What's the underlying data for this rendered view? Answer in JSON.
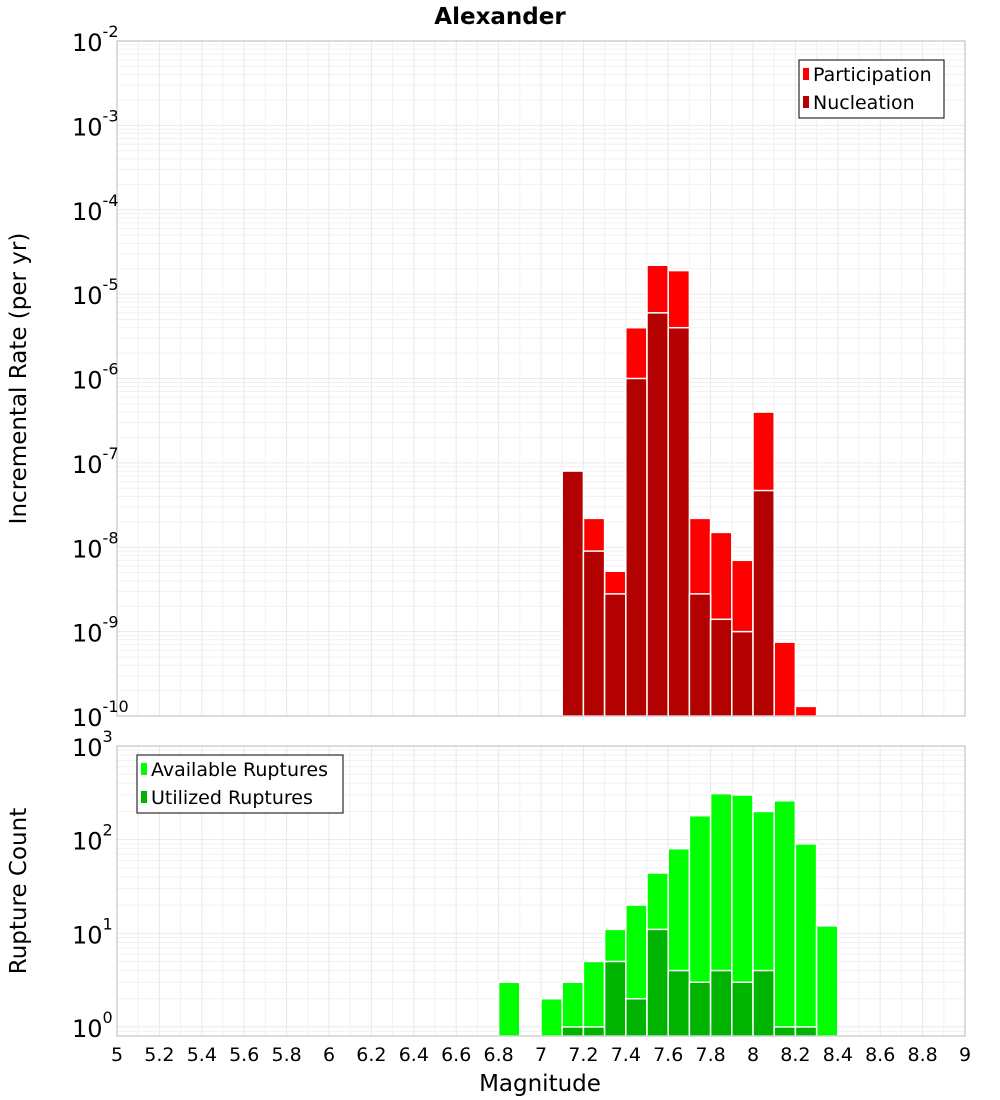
{
  "chart_data": [
    {
      "type": "bar",
      "title": "Alexander",
      "xlabel": "",
      "ylabel": "Incremental Rate (per yr)",
      "xlim": [
        5,
        9
      ],
      "ylim": [
        1e-10,
        0.01
      ],
      "yscale": "log",
      "grid": true,
      "legend_position": "top-right",
      "y_ticks": [
        "10",
        "10",
        "10",
        "10",
        "10",
        "10",
        "10",
        "10",
        "10"
      ],
      "y_tick_exponents": [
        "-10",
        "-9",
        "-8",
        "-7",
        "-6",
        "-5",
        "-4",
        "-3",
        "-2"
      ],
      "y_tick_values": [
        1e-10,
        1e-09,
        1e-08,
        1e-07,
        1e-06,
        1e-05,
        0.0001,
        0.001,
        0.01
      ],
      "series": [
        {
          "name": "Participation",
          "color": "#ff0000",
          "x": [
            7.15,
            7.25,
            7.35,
            7.45,
            7.55,
            7.65,
            7.75,
            7.85,
            7.95,
            8.05,
            8.15,
            8.25
          ],
          "values": [
            8e-08,
            2.2e-08,
            5.2e-09,
            4e-06,
            2.2e-05,
            1.9e-05,
            2.2e-08,
            1.5e-08,
            7e-09,
            4e-07,
            7.5e-10,
            1.3e-10
          ]
        },
        {
          "name": "Nucleation",
          "color": "#b30000",
          "x": [
            7.15,
            7.25,
            7.35,
            7.45,
            7.55,
            7.65,
            7.75,
            7.85,
            7.95,
            8.05
          ],
          "values": [
            8e-08,
            9e-09,
            2.8e-09,
            1e-06,
            6e-06,
            4e-06,
            2.8e-09,
            1.4e-09,
            1e-09,
            4.7e-08
          ]
        }
      ]
    },
    {
      "type": "bar",
      "title": "",
      "xlabel": "Magnitude",
      "ylabel": "Rupture Count",
      "xlim": [
        5,
        9
      ],
      "ylim": [
        0.8,
        1000
      ],
      "yscale": "log",
      "grid": true,
      "legend_position": "top-left",
      "x_ticks": [
        "5",
        "5.2",
        "5.4",
        "5.6",
        "5.8",
        "6",
        "6.2",
        "6.4",
        "6.6",
        "6.8",
        "7",
        "7.2",
        "7.4",
        "7.6",
        "7.8",
        "8",
        "8.2",
        "8.4",
        "8.6",
        "8.8",
        "9"
      ],
      "y_ticks": [
        "10",
        "10",
        "10",
        "10"
      ],
      "y_tick_exponents": [
        "0",
        "1",
        "2",
        "3"
      ],
      "y_tick_values": [
        1,
        10,
        100,
        1000
      ],
      "series": [
        {
          "name": "Available Ruptures",
          "color": "#00ff00",
          "x": [
            6.85,
            7.05,
            7.15,
            7.25,
            7.35,
            7.45,
            7.55,
            7.65,
            7.75,
            7.85,
            7.95,
            8.05,
            8.15,
            8.25,
            8.35
          ],
          "values": [
            3,
            2,
            3,
            5,
            11,
            20,
            44,
            80,
            180,
            310,
            300,
            200,
            260,
            90,
            12
          ]
        },
        {
          "name": "Utilized Ruptures",
          "color": "#00b300",
          "x": [
            7.15,
            7.25,
            7.35,
            7.45,
            7.55,
            7.65,
            7.75,
            7.85,
            7.95,
            8.05,
            8.15,
            8.25
          ],
          "values": [
            1,
            1,
            5,
            2,
            11,
            4,
            3,
            4,
            3,
            4,
            1,
            1
          ]
        }
      ]
    }
  ]
}
